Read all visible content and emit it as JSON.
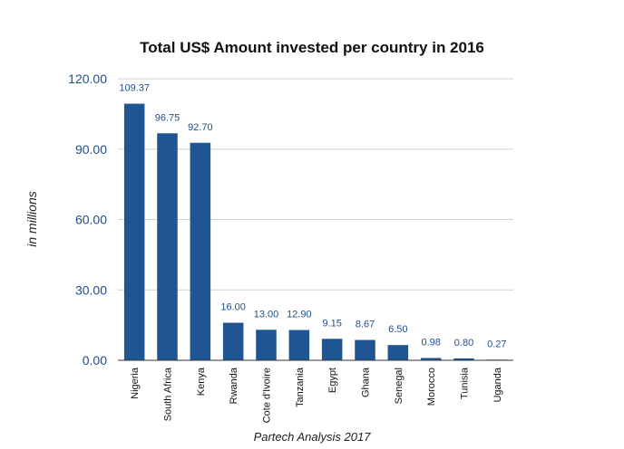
{
  "chart_data": {
    "type": "bar",
    "title": "Total US$ Amount invested per country in 2016",
    "xlabel": "Partech Analysis 2017",
    "ylabel": "in millions",
    "ylim": [
      0,
      120
    ],
    "yticks": [
      "0.00",
      "30.00",
      "60.00",
      "90.00",
      "120.00"
    ],
    "ytick_values": [
      0,
      30,
      60,
      90,
      120
    ],
    "grid": true,
    "bar_color": "#1f5592",
    "categories": [
      "Nigeria",
      "South Africa",
      "Kenya",
      "Rwanda",
      "Cote d'Ivoire",
      "Tanzania",
      "Egypt",
      "Ghana",
      "Senegal",
      "Morocco",
      "Tunisia",
      "Uganda"
    ],
    "values": [
      109.37,
      96.75,
      92.7,
      16.0,
      13.0,
      12.9,
      9.15,
      8.67,
      6.5,
      0.98,
      0.8,
      0.27
    ],
    "data_labels": [
      "109.37",
      "96.75",
      "92.70",
      "16.00",
      "13.00",
      "12.90",
      "9.15",
      "8.67",
      "6.50",
      "0.98",
      "0.80",
      "0.27"
    ]
  }
}
